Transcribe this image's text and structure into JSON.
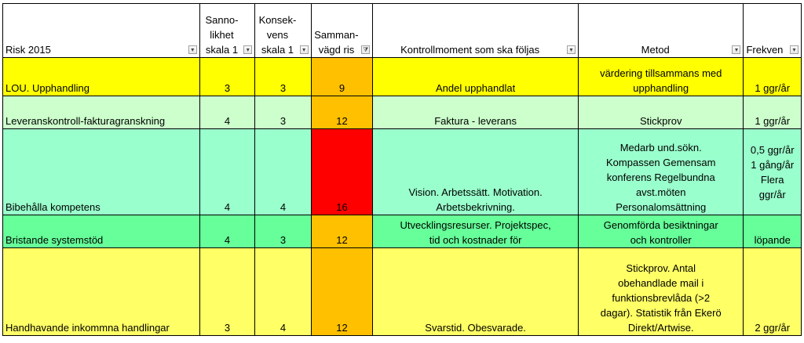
{
  "headers": {
    "risk": "Risk 2015",
    "sannolikhet": [
      "Sanno-",
      "likhet",
      "skala 1"
    ],
    "konsekvens": [
      "Konsek-",
      "vens",
      "skala 1"
    ],
    "sammanvagd": [
      "Samman-",
      "vägd ris"
    ],
    "kontrollmoment": "Kontrollmoment som ska följas",
    "metod": "Metod",
    "frekvens": "Frekven"
  },
  "filter_icons": {
    "dropdown": "▾",
    "filtered": "⧩"
  },
  "colors": {
    "yellow": "#ffff00",
    "light_yellow": "#ffff66",
    "light_green": "#ccffcc",
    "mint": "#99ffcc",
    "green": "#66ff99",
    "orange": "#ffc000",
    "red": "#ff0000"
  },
  "rows": [
    {
      "risk": "LOU. Upphandling",
      "sannolikhet": "3",
      "konsekvens": "3",
      "sammanvagd": "9",
      "kontrollmoment": [
        "Andel upphandlat"
      ],
      "metod": [
        "värdering tillsammans med",
        "upphandling"
      ],
      "frekvens": [
        "1 ggr/år"
      ]
    },
    {
      "risk": "Leveranskontroll-fakturagranskning",
      "sannolikhet": "4",
      "konsekvens": "3",
      "sammanvagd": "12",
      "kontrollmoment": [
        "Faktura - leverans"
      ],
      "metod": [
        "Stickprov"
      ],
      "frekvens": [
        "1 ggr/år"
      ]
    },
    {
      "risk": "Bibehålla kompetens",
      "sannolikhet": "4",
      "konsekvens": "4",
      "sammanvagd": "16",
      "kontrollmoment": [
        "Vision. Arbetssätt. Motivation.",
        "Arbetsbekrivning."
      ],
      "metod": [
        "Medarb und.sökn.",
        "Kompassen Gemensam",
        "konferens Regelbundna",
        "avst.möten",
        "Personalomsättning"
      ],
      "frekvens": [
        "0,5 ggr/år",
        "1 gång/år",
        "Flera",
        "ggr/år"
      ]
    },
    {
      "risk": "Bristande systemstöd",
      "sannolikhet": "4",
      "konsekvens": "3",
      "sammanvagd": "12",
      "kontrollmoment": [
        "Utvecklingsresurser. Projektspec,",
        "tid och kostnader för"
      ],
      "metod": [
        "Genomförda besiktningar",
        "och kontroller"
      ],
      "frekvens": [
        "löpande"
      ]
    },
    {
      "risk": "Handhavande inkommna handlingar",
      "sannolikhet": "3",
      "konsekvens": "4",
      "sammanvagd": "12",
      "kontrollmoment": [
        "Svarstid. Obesvarade."
      ],
      "metod": [
        "Stickprov. Antal",
        "obehandlade mail i",
        "funktionsbrevlåda (>2",
        "dagar). Statistik från Ekerö",
        "Direkt/Artwise."
      ],
      "frekvens": [
        "2 ggr/år"
      ]
    }
  ]
}
